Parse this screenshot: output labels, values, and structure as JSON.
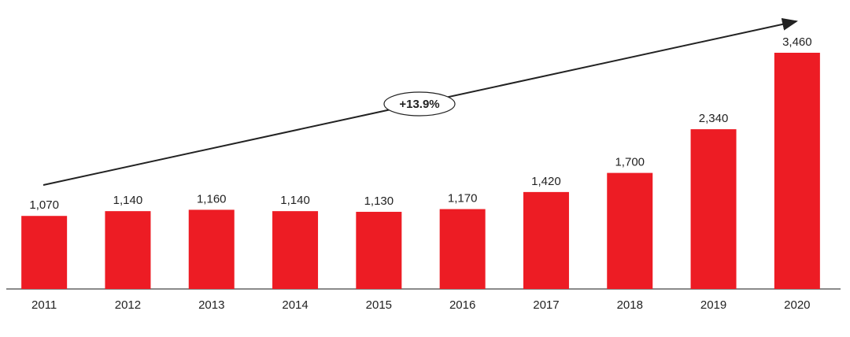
{
  "chart_data": {
    "type": "bar",
    "categories": [
      "2011",
      "2012",
      "2013",
      "2014",
      "2015",
      "2016",
      "2017",
      "2018",
      "2019",
      "2020"
    ],
    "values": [
      1070,
      1140,
      1160,
      1140,
      1130,
      1170,
      1420,
      1700,
      2340,
      3460
    ],
    "value_labels": [
      "1,070",
      "1,140",
      "1,160",
      "1,140",
      "1,130",
      "1,170",
      "1,420",
      "1,700",
      "2,340",
      "3,460"
    ],
    "color": "#ed1c24",
    "annotation": "+13.9%"
  }
}
